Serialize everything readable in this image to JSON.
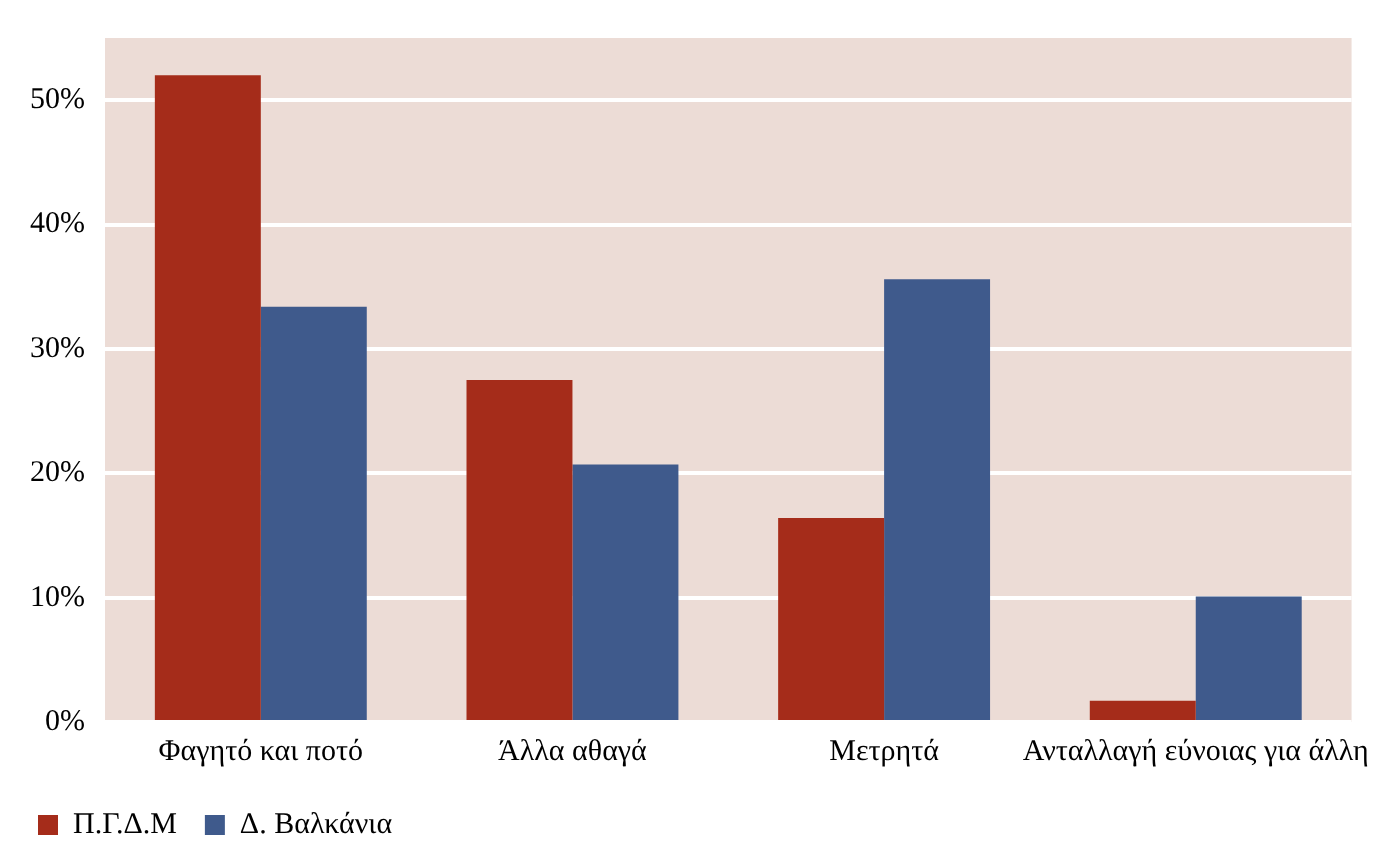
{
  "chart_data": {
    "type": "bar",
    "categories": [
      "Φαγητό και ποτό",
      "Άλλα αθαγά",
      "Μετρητά",
      "Ανταλλαγή εύνοιας για άλλη"
    ],
    "series": [
      {
        "name": "Π.Γ.Δ.Μ",
        "color": "#a52c1a",
        "values": [
          52.0,
          27.5,
          16.4,
          1.7
        ]
      },
      {
        "name": "Δ. Βαλκάνια",
        "color": "#3f5a8c",
        "values": [
          33.4,
          20.7,
          35.6,
          10.1
        ]
      }
    ],
    "ylim": [
      0,
      55
    ],
    "yticks": [
      {
        "value": 0,
        "label": "0%"
      },
      {
        "value": 10,
        "label": "10%"
      },
      {
        "value": 20,
        "label": "20%"
      },
      {
        "value": 30,
        "label": "30%"
      },
      {
        "value": 40,
        "label": "40%"
      },
      {
        "value": 50,
        "label": "50%"
      }
    ],
    "grid": "y",
    "legend": "bottom left"
  }
}
